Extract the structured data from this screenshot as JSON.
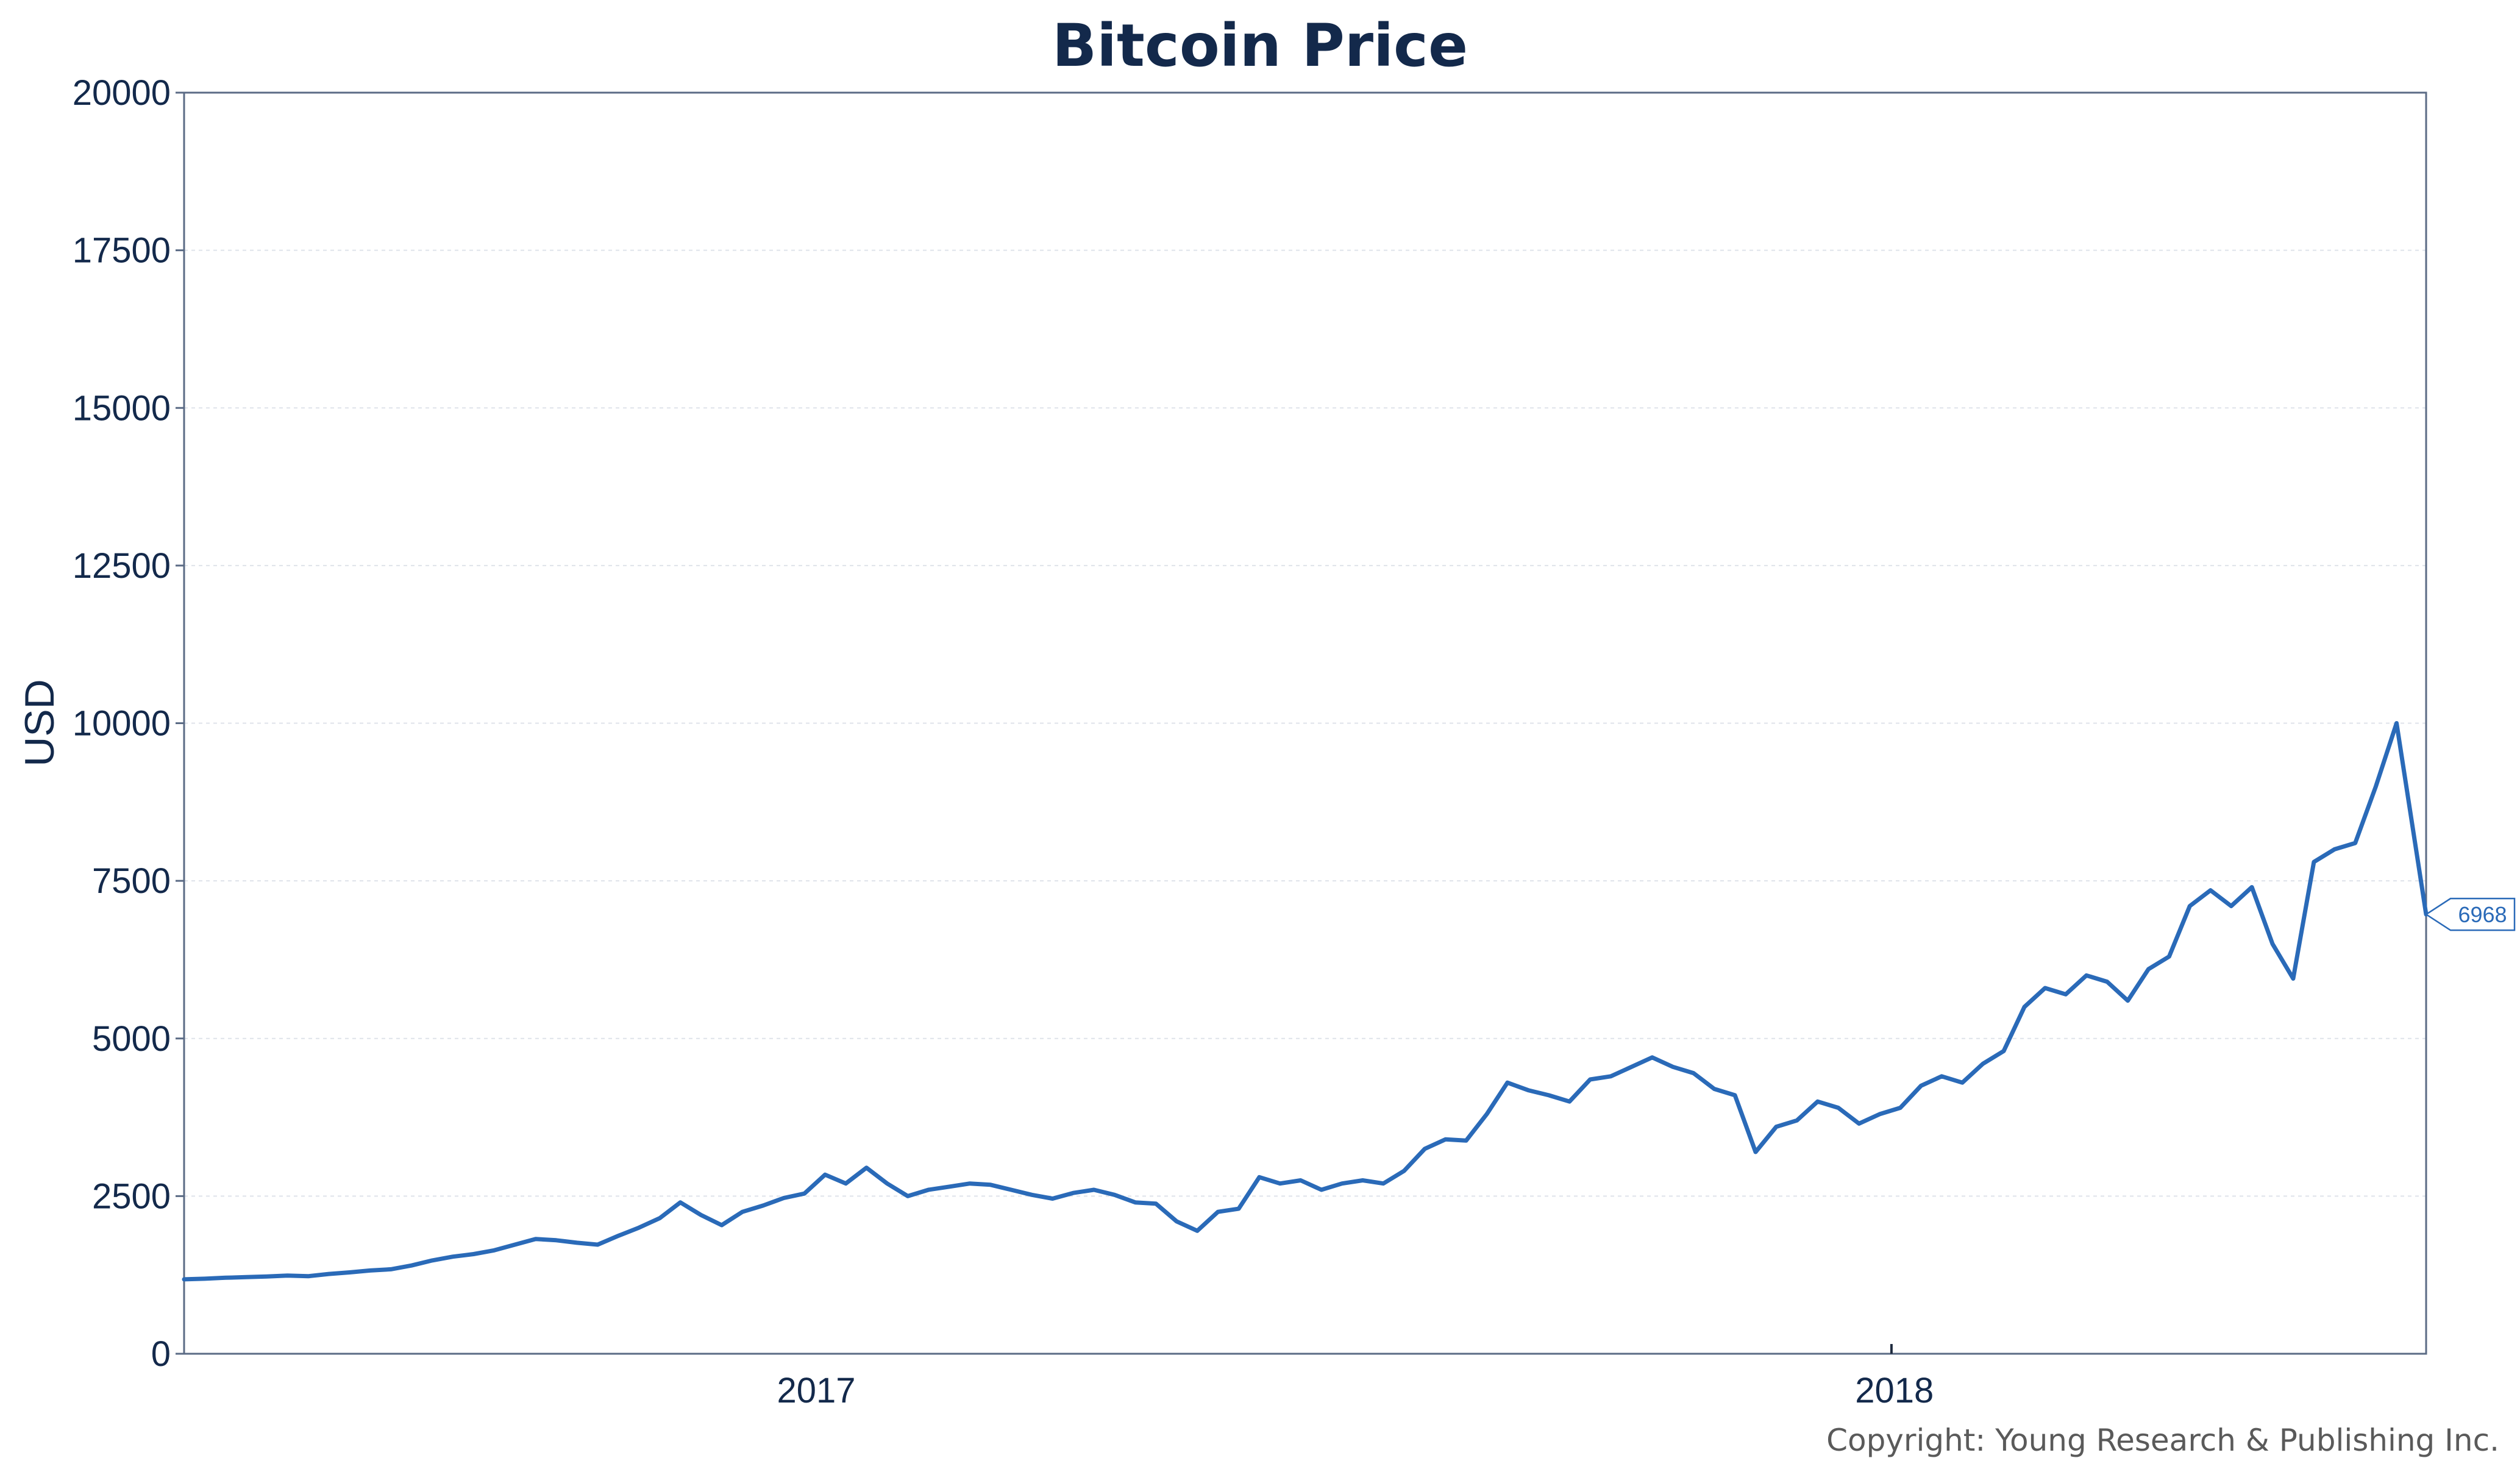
{
  "colors": {
    "title": "#13294b",
    "line": "#2a6ab8",
    "axis": "#5b6b85",
    "grid": "#dfe3ea",
    "copyright": "#5a5a5a"
  },
  "copyright": "Copyright: Young Research & Publishing Inc.",
  "chart_data": {
    "type": "line",
    "title": "Bitcoin Price",
    "xlabel": "",
    "ylabel": "USD",
    "grid": true,
    "ylim": [
      0,
      20000
    ],
    "yticks": [
      0,
      2500,
      5000,
      7500,
      10000,
      12500,
      15000,
      17500,
      20000
    ],
    "ytick_labels": [
      "0",
      "2500",
      "5000",
      "7500",
      "10000",
      "12500",
      "15000",
      "17500",
      "20000"
    ],
    "xlim": [
      "2016-06-01",
      "2018-06-30"
    ],
    "xtick_labels": [
      {
        "date": "2017-01-01",
        "label": "2017"
      },
      {
        "date": "2018-01-01",
        "label": "2018"
      }
    ],
    "year_boundary": "2017-12-31",
    "last_value_label": "6968",
    "series": [
      {
        "points": [
          [
            "2016-06-01",
            1180
          ],
          [
            "2016-06-08",
            1190
          ],
          [
            "2016-06-15",
            1205
          ],
          [
            "2016-06-22",
            1215
          ],
          [
            "2016-06-29",
            1225
          ],
          [
            "2016-07-06",
            1240
          ],
          [
            "2016-07-13",
            1230
          ],
          [
            "2016-07-20",
            1265
          ],
          [
            "2016-07-27",
            1290
          ],
          [
            "2016-08-03",
            1320
          ],
          [
            "2016-08-10",
            1340
          ],
          [
            "2016-08-17",
            1400
          ],
          [
            "2016-08-24",
            1480
          ],
          [
            "2016-08-31",
            1540
          ],
          [
            "2016-09-07",
            1580
          ],
          [
            "2016-09-14",
            1640
          ],
          [
            "2016-09-21",
            1730
          ],
          [
            "2016-09-28",
            1820
          ],
          [
            "2016-10-05",
            1800
          ],
          [
            "2016-10-12",
            1760
          ],
          [
            "2016-10-19",
            1730
          ],
          [
            "2016-10-26",
            1870
          ],
          [
            "2016-11-02",
            2000
          ],
          [
            "2016-11-09",
            2150
          ],
          [
            "2016-11-16",
            2400
          ],
          [
            "2016-11-23",
            2200
          ],
          [
            "2016-11-30",
            2040
          ],
          [
            "2016-12-07",
            2250
          ],
          [
            "2016-12-14",
            2350
          ],
          [
            "2016-12-21",
            2470
          ],
          [
            "2016-12-28",
            2540
          ],
          [
            "2017-01-04",
            2840
          ],
          [
            "2017-01-11",
            2700
          ],
          [
            "2017-01-18",
            2950
          ],
          [
            "2017-01-25",
            2700
          ],
          [
            "2017-02-01",
            2500
          ],
          [
            "2017-02-08",
            2600
          ],
          [
            "2017-02-15",
            2650
          ],
          [
            "2017-02-22",
            2700
          ],
          [
            "2017-03-01",
            2680
          ],
          [
            "2017-03-08",
            2600
          ],
          [
            "2017-03-15",
            2520
          ],
          [
            "2017-03-22",
            2460
          ],
          [
            "2017-03-29",
            2550
          ],
          [
            "2017-04-05",
            2600
          ],
          [
            "2017-04-12",
            2520
          ],
          [
            "2017-04-19",
            2400
          ],
          [
            "2017-04-26",
            2380
          ],
          [
            "2017-05-03",
            2100
          ],
          [
            "2017-05-10",
            1950
          ],
          [
            "2017-05-17",
            2250
          ],
          [
            "2017-05-24",
            2300
          ],
          [
            "2017-05-31",
            2800
          ],
          [
            "2017-06-07",
            2700
          ],
          [
            "2017-06-14",
            2750
          ],
          [
            "2017-06-21",
            2600
          ],
          [
            "2017-06-28",
            2700
          ],
          [
            "2017-07-05",
            2750
          ],
          [
            "2017-07-12",
            2700
          ],
          [
            "2017-07-19",
            2900
          ],
          [
            "2017-07-26",
            3250
          ],
          [
            "2017-08-02",
            3400
          ],
          [
            "2017-08-09",
            3380
          ],
          [
            "2017-08-16",
            3800
          ],
          [
            "2017-08-23",
            4300
          ],
          [
            "2017-08-30",
            4180
          ],
          [
            "2017-09-06",
            4100
          ],
          [
            "2017-09-13",
            4000
          ],
          [
            "2017-09-20",
            4350
          ],
          [
            "2017-09-27",
            4400
          ],
          [
            "2017-10-04",
            4550
          ],
          [
            "2017-10-11",
            4700
          ],
          [
            "2017-10-18",
            4550
          ],
          [
            "2017-10-25",
            4450
          ],
          [
            "2017-11-01",
            4200
          ],
          [
            "2017-11-08",
            4100
          ],
          [
            "2017-11-15",
            3200
          ],
          [
            "2017-11-22",
            3600
          ],
          [
            "2017-11-29",
            3700
          ],
          [
            "2017-12-06",
            4000
          ],
          [
            "2017-12-13",
            3900
          ],
          [
            "2017-12-20",
            3650
          ],
          [
            "2017-12-27",
            3800
          ],
          [
            "2018-01-03",
            3900
          ],
          [
            "2018-01-10",
            4250
          ],
          [
            "2018-01-17",
            4400
          ],
          [
            "2018-01-24",
            4300
          ],
          [
            "2018-01-31",
            4600
          ],
          [
            "2018-02-07",
            4800
          ],
          [
            "2018-02-14",
            5500
          ],
          [
            "2018-02-21",
            5800
          ],
          [
            "2018-02-28",
            5700
          ],
          [
            "2018-03-07",
            6000
          ],
          [
            "2018-03-14",
            5900
          ],
          [
            "2018-03-21",
            5600
          ],
          [
            "2018-03-28",
            6100
          ],
          [
            "2018-04-04",
            6300
          ],
          [
            "2018-04-11",
            7100
          ],
          [
            "2018-04-18",
            7350
          ],
          [
            "2018-04-25",
            7100
          ],
          [
            "2018-05-02",
            7400
          ],
          [
            "2018-05-09",
            6500
          ],
          [
            "2018-05-16",
            5950
          ],
          [
            "2018-05-23",
            7800
          ],
          [
            "2018-05-30",
            8000
          ],
          [
            "2018-06-06",
            8100
          ],
          [
            "2018-06-13",
            9000
          ],
          [
            "2018-06-20",
            10000
          ],
          [
            "2018-06-30",
            6968
          ]
        ]
      }
    ]
  }
}
